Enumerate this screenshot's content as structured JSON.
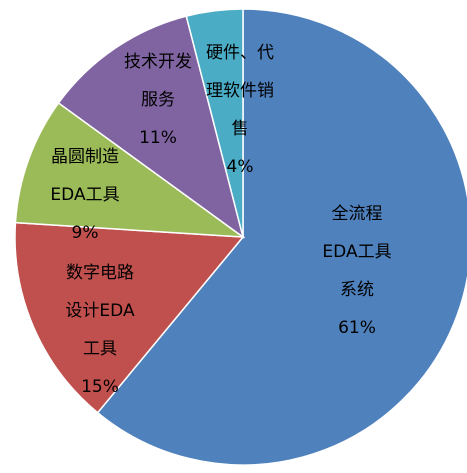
{
  "chart_data": {
    "type": "pie",
    "categories": [
      [
        "全流程",
        "EDA工具",
        "系统"
      ],
      [
        "数字电路",
        "设计EDA",
        "工具"
      ],
      [
        "晶圆制造",
        "EDA工具"
      ],
      [
        "技术开发",
        "服务"
      ],
      [
        "硬件、代",
        "理软件销",
        "售"
      ]
    ],
    "values": [
      61,
      15,
      9,
      11,
      4
    ],
    "value_labels": [
      "61%",
      "15%",
      "9%",
      "11%",
      "4%"
    ],
    "colors": [
      "#4f81bd",
      "#c0504d",
      "#9bbb59",
      "#8064a2",
      "#4bacc6"
    ]
  }
}
